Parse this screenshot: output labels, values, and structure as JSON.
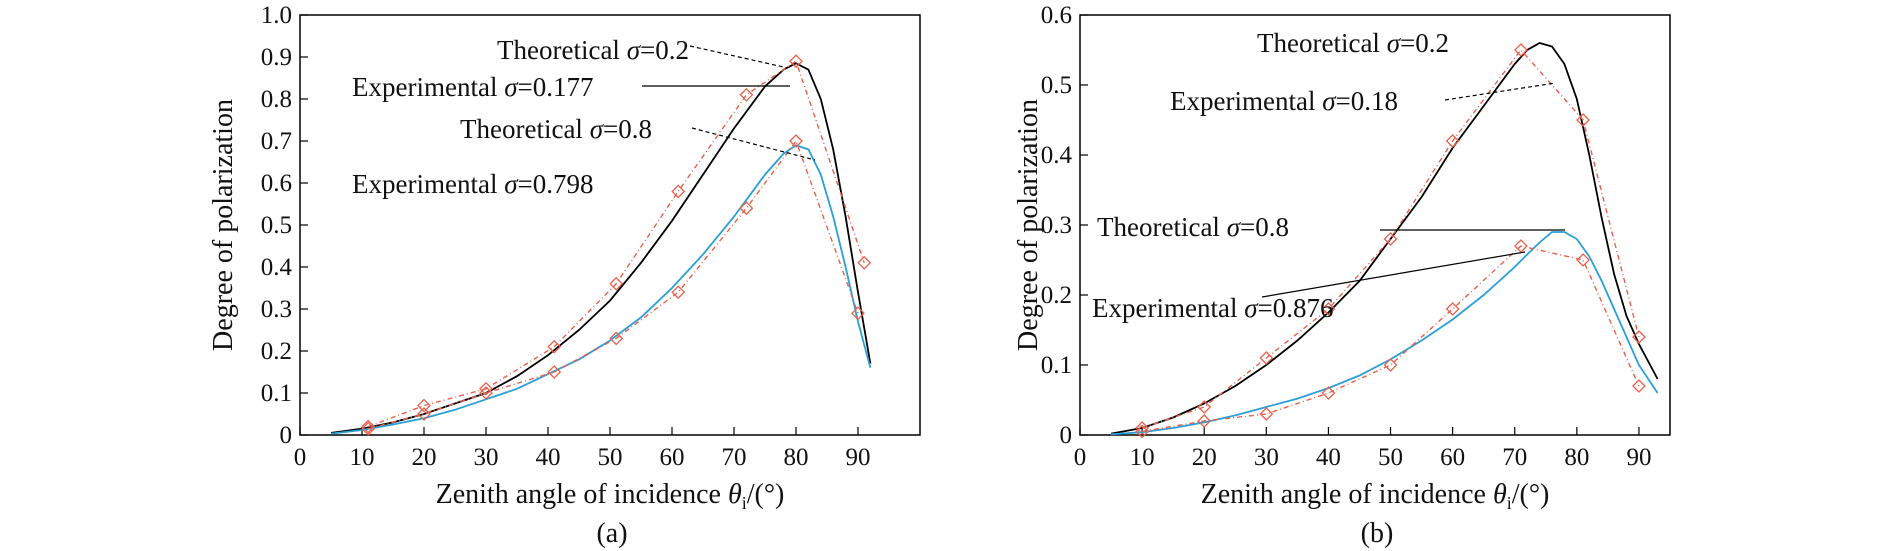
{
  "chart_data": [
    {
      "id": "a",
      "type": "line",
      "caption": "(a)",
      "xlabel_main": "Zenith angle of incidence ",
      "xlabel_sym": "θ",
      "xlabel_sub": "i",
      "xlabel_unit": "/(°)",
      "ylabel": "Degree of polarization",
      "xlim": [
        0,
        100
      ],
      "ylim": [
        0,
        1.0
      ],
      "xticks": [
        "0",
        "10",
        "20",
        "30",
        "40",
        "50",
        "60",
        "70",
        "80",
        "90"
      ],
      "yticks": [
        "0",
        "0.1",
        "0.2",
        "0.3",
        "0.4",
        "0.5",
        "0.6",
        "0.7",
        "0.8",
        "0.9",
        "1.0"
      ],
      "series": [
        {
          "style": "theoretical",
          "color": "#000000",
          "x": [
            5,
            10,
            15,
            20,
            25,
            30,
            35,
            40,
            45,
            50,
            55,
            60,
            65,
            70,
            75,
            78,
            80,
            82,
            84,
            86,
            88,
            90,
            92
          ],
          "y": [
            0.005,
            0.015,
            0.03,
            0.05,
            0.075,
            0.1,
            0.14,
            0.19,
            0.25,
            0.32,
            0.41,
            0.51,
            0.62,
            0.73,
            0.83,
            0.87,
            0.885,
            0.87,
            0.8,
            0.68,
            0.52,
            0.34,
            0.17
          ]
        },
        {
          "style": "experimental",
          "color": "#e8604c",
          "x": [
            11,
            20,
            30,
            41,
            51,
            61,
            72,
            80,
            91
          ],
          "y": [
            0.02,
            0.07,
            0.11,
            0.21,
            0.36,
            0.58,
            0.81,
            0.89,
            0.41
          ]
        },
        {
          "style": "theoretical",
          "color": "#2a9fd6",
          "x": [
            5,
            10,
            15,
            20,
            25,
            30,
            35,
            40,
            45,
            50,
            55,
            60,
            65,
            70,
            75,
            78,
            80,
            82,
            84,
            86,
            88,
            90,
            92
          ],
          "y": [
            0.003,
            0.012,
            0.025,
            0.04,
            0.06,
            0.085,
            0.11,
            0.145,
            0.18,
            0.225,
            0.28,
            0.35,
            0.43,
            0.52,
            0.62,
            0.67,
            0.69,
            0.68,
            0.62,
            0.52,
            0.4,
            0.27,
            0.16
          ]
        },
        {
          "style": "experimental",
          "color": "#e8604c",
          "x": [
            11,
            20,
            30,
            41,
            51,
            61,
            72,
            80,
            90
          ],
          "y": [
            0.015,
            0.05,
            0.1,
            0.15,
            0.23,
            0.34,
            0.54,
            0.7,
            0.29
          ]
        }
      ],
      "annotations": [
        {
          "text": "Theoretical ",
          "sym": "σ",
          "val": "=0.2"
        },
        {
          "text": "Experimental ",
          "sym": "σ",
          "val": "=0.177"
        },
        {
          "text": "Theoretical ",
          "sym": "σ",
          "val": "=0.8"
        },
        {
          "text": "Experimental ",
          "sym": "σ",
          "val": "=0.798"
        }
      ]
    },
    {
      "id": "b",
      "type": "line",
      "caption": "(b)",
      "xlabel_main": "Zenith angle of incidence ",
      "xlabel_sym": "θ",
      "xlabel_sub": "i",
      "xlabel_unit": "/(°)",
      "ylabel": "Degree of polarization",
      "xlim": [
        0,
        95
      ],
      "ylim": [
        0,
        0.6
      ],
      "xticks": [
        "0",
        "10",
        "20",
        "30",
        "40",
        "50",
        "60",
        "70",
        "80",
        "90"
      ],
      "yticks": [
        "0",
        "0.1",
        "0.2",
        "0.3",
        "0.4",
        "0.5",
        "0.6"
      ],
      "series": [
        {
          "style": "theoretical",
          "color": "#000000",
          "x": [
            5,
            10,
            15,
            20,
            25,
            30,
            35,
            40,
            45,
            50,
            55,
            60,
            65,
            70,
            72,
            74,
            76,
            78,
            80,
            82,
            84,
            86,
            88,
            90,
            93
          ],
          "y": [
            0.002,
            0.01,
            0.025,
            0.045,
            0.07,
            0.1,
            0.135,
            0.175,
            0.22,
            0.28,
            0.34,
            0.41,
            0.47,
            0.53,
            0.55,
            0.56,
            0.555,
            0.53,
            0.48,
            0.4,
            0.31,
            0.23,
            0.17,
            0.13,
            0.08
          ]
        },
        {
          "style": "experimental",
          "color": "#e8604c",
          "x": [
            10,
            20,
            30,
            40,
            50,
            60,
            71,
            81,
            90
          ],
          "y": [
            0.01,
            0.04,
            0.11,
            0.18,
            0.28,
            0.42,
            0.55,
            0.45,
            0.14
          ]
        },
        {
          "style": "theoretical",
          "color": "#2a9fd6",
          "x": [
            5,
            10,
            15,
            20,
            25,
            30,
            35,
            40,
            45,
            50,
            55,
            60,
            65,
            70,
            72,
            74,
            76,
            78,
            80,
            82,
            84,
            86,
            88,
            90,
            93
          ],
          "y": [
            0.001,
            0.004,
            0.01,
            0.018,
            0.028,
            0.04,
            0.052,
            0.067,
            0.085,
            0.108,
            0.135,
            0.165,
            0.2,
            0.24,
            0.258,
            0.275,
            0.29,
            0.29,
            0.28,
            0.255,
            0.22,
            0.18,
            0.14,
            0.1,
            0.06
          ]
        },
        {
          "style": "experimental",
          "color": "#e8604c",
          "x": [
            10,
            20,
            30,
            40,
            50,
            60,
            71,
            81,
            90
          ],
          "y": [
            0.005,
            0.02,
            0.03,
            0.06,
            0.1,
            0.18,
            0.27,
            0.25,
            0.07
          ]
        }
      ],
      "annotations": [
        {
          "text": "Theoretical ",
          "sym": "σ",
          "val": "=0.2"
        },
        {
          "text": "Experimental ",
          "sym": "σ",
          "val": "=0.18"
        },
        {
          "text": "Theoretical ",
          "sym": "σ",
          "val": "=0.8"
        },
        {
          "text": "Experimental ",
          "sym": "σ",
          "val": "=0.876"
        }
      ]
    }
  ]
}
